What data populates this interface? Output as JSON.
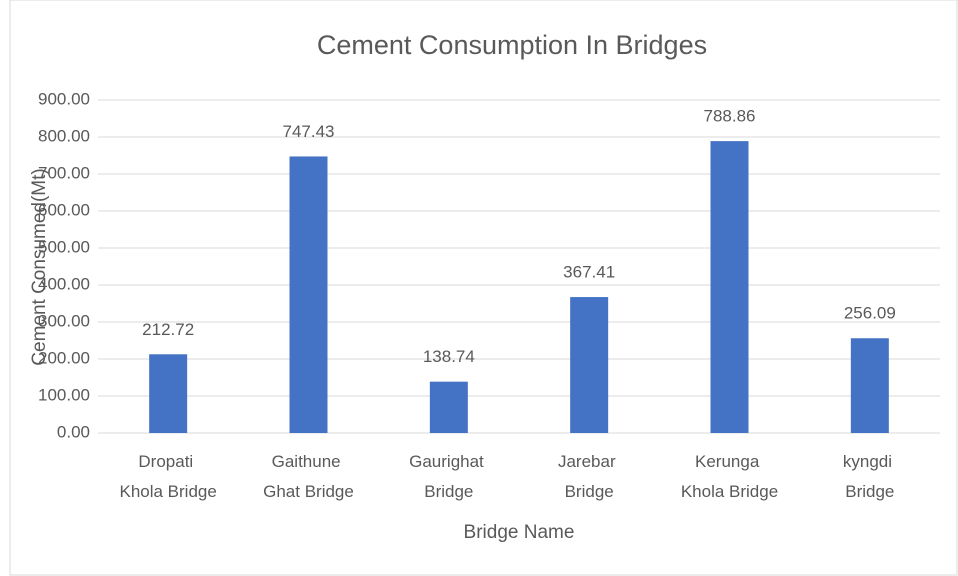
{
  "chart_data": {
    "type": "bar",
    "title": "Cement Consumption In Bridges",
    "x_label": "Bridge Name",
    "y_label": "Cement Consumed(Mt)",
    "categories": [
      "Dropati Khola Bridge",
      "Gaithune Ghat Bridge",
      "Gaurighat Bridge",
      "Jarebar Bridge",
      "Kerunga Khola Bridge",
      "kyngdi Bridge"
    ],
    "values": [
      212.72,
      747.43,
      138.74,
      367.41,
      788.86,
      256.09
    ],
    "color": "#4472c4",
    "ylim": [
      0,
      900
    ],
    "yticks": [
      {
        "value": 0,
        "label": "0.00"
      },
      {
        "value": 100,
        "label": "100.00"
      },
      {
        "value": 200,
        "label": "200.00"
      },
      {
        "value": 300,
        "label": "300.00"
      },
      {
        "value": 400,
        "label": "400.00"
      },
      {
        "value": 500,
        "label": "500.00"
      },
      {
        "value": 600,
        "label": "600.00"
      },
      {
        "value": 700,
        "label": "700.00"
      },
      {
        "value": 800,
        "label": "800.00"
      },
      {
        "value": 900,
        "label": "900.00"
      }
    ],
    "grid": true
  }
}
